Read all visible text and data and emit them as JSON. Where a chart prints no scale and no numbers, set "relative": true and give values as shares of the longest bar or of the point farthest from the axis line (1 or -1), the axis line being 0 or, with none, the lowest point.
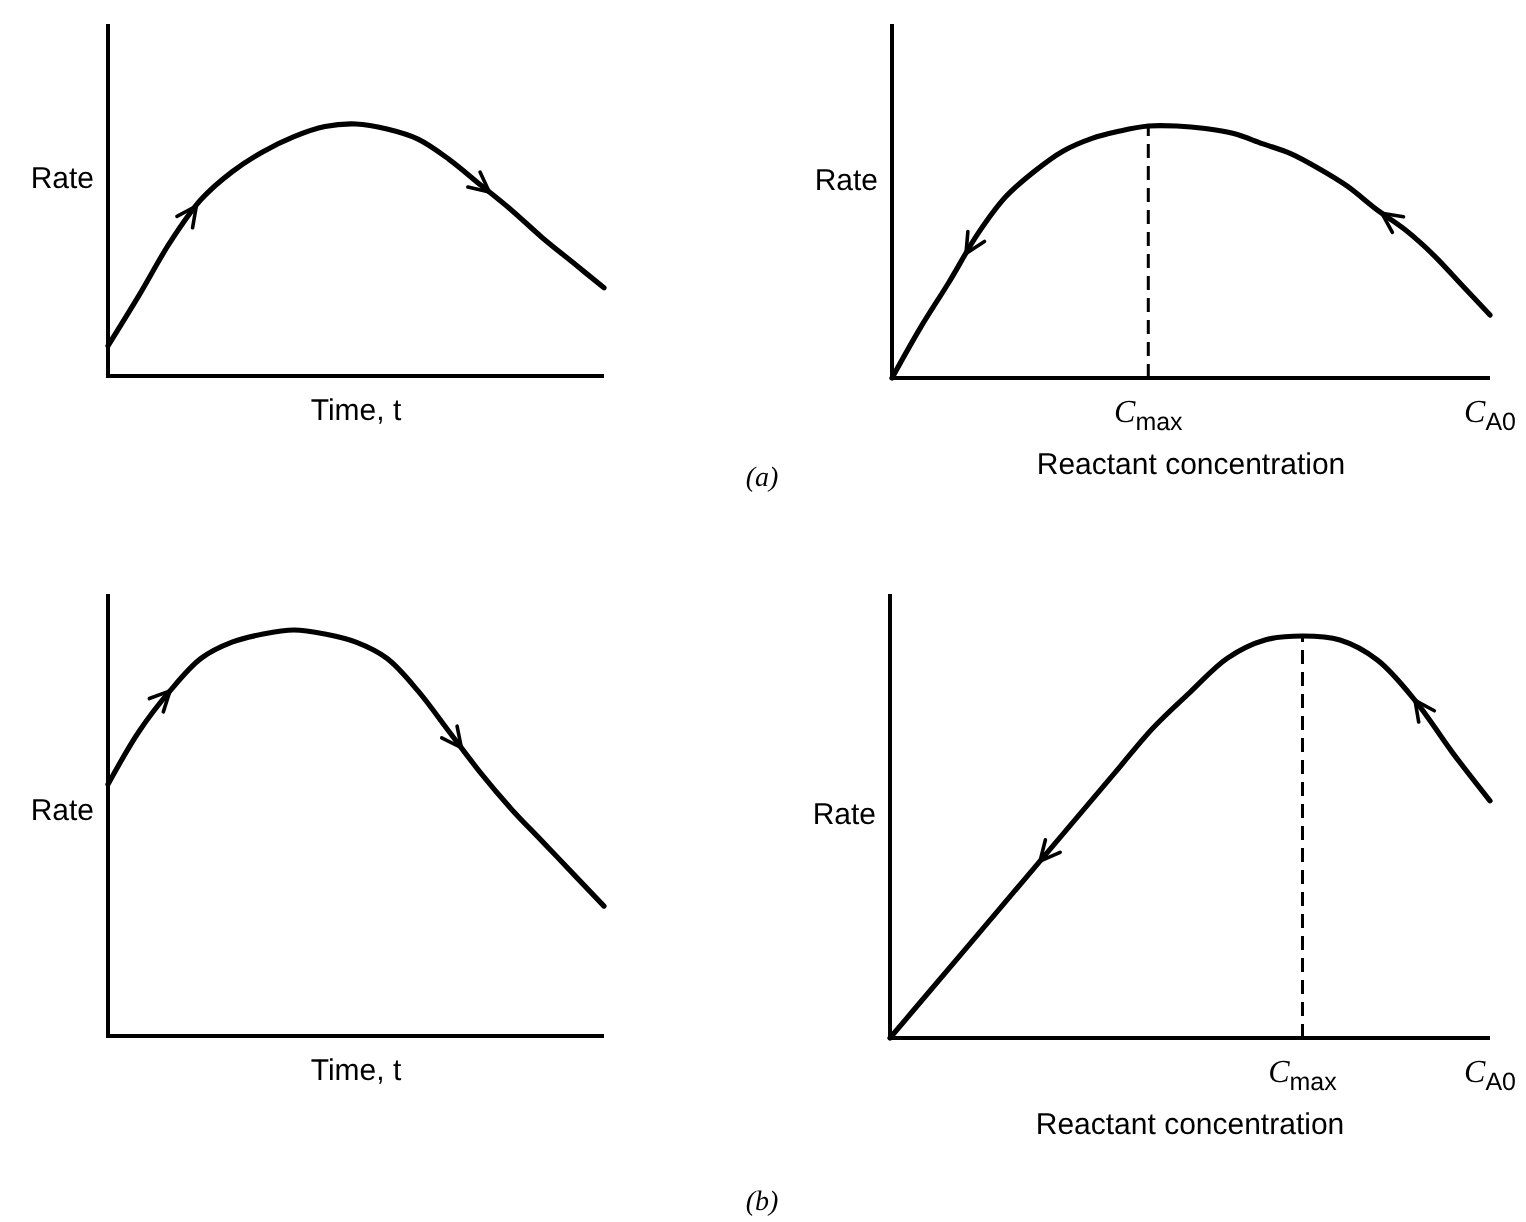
{
  "chart_data": [
    {
      "type": "line",
      "relative": true,
      "ylabel": "Rate",
      "xlabel": "Time, t",
      "tick_labels": false,
      "color": "#000000",
      "annotations": [
        "(a)"
      ],
      "categories": [
        null,
        null,
        null,
        null,
        null,
        null,
        null,
        null,
        null,
        null,
        null,
        null,
        null,
        null,
        null,
        null,
        null
      ],
      "values": [
        0.12,
        0.32,
        0.53,
        0.7,
        0.81,
        0.89,
        0.95,
        0.99,
        1.0,
        0.98,
        0.94,
        0.86,
        0.76,
        0.66,
        0.55,
        0.45,
        0.35
      ]
    },
    {
      "type": "line",
      "relative": true,
      "ylabel": "Rate",
      "xlabel": "Reactant concentration",
      "tick_labels": "x",
      "color": "#000000",
      "categories": [
        null,
        null,
        null,
        null,
        null,
        null,
        null,
        null,
        null,
        "C$_{max}$",
        null,
        null,
        null,
        null,
        null,
        null,
        null,
        null,
        null,
        null,
        null,
        "C$_{A0}$"
      ],
      "values": [
        0,
        0.2,
        0.38,
        0.57,
        0.72,
        0.82,
        0.9,
        0.95,
        0.98,
        1.0,
        1.0,
        0.99,
        0.97,
        0.93,
        0.89,
        0.83,
        0.76,
        0.67,
        0.59,
        0.49,
        0.37,
        0.25
      ],
      "ref_lines": [
        {
          "axis": "x",
          "value": "C$_{max}$",
          "line_style": "dashed",
          "color": "#000000"
        }
      ]
    },
    {
      "type": "line",
      "relative": true,
      "ylabel": "Rate",
      "xlabel": "Time, t",
      "tick_labels": false,
      "color": "#000000",
      "annotations": [
        "(b)"
      ],
      "categories": [
        null,
        null,
        null,
        null,
        null,
        null,
        null,
        null,
        null,
        null,
        null,
        null,
        null,
        null,
        null,
        null,
        null
      ],
      "values": [
        0.62,
        0.75,
        0.85,
        0.93,
        0.97,
        0.99,
        1.0,
        0.99,
        0.97,
        0.93,
        0.85,
        0.75,
        0.65,
        0.56,
        0.48,
        0.4,
        0.32
      ]
    },
    {
      "type": "line",
      "relative": true,
      "ylabel": "Rate",
      "xlabel": "Reactant concentration",
      "tick_labels": "x",
      "color": "#000000",
      "categories": [
        null,
        null,
        null,
        null,
        null,
        null,
        null,
        null,
        null,
        null,
        null,
        "C$_{max}$",
        null,
        null,
        null,
        null,
        "C$_{A0}$"
      ],
      "values": [
        0,
        0.11,
        0.22,
        0.33,
        0.44,
        0.55,
        0.66,
        0.77,
        0.86,
        0.945,
        0.99,
        1.0,
        0.99,
        0.94,
        0.84,
        0.71,
        0.59
      ],
      "ref_lines": [
        {
          "axis": "x",
          "value": "C$_{max}$",
          "line_style": "dashed",
          "color": "#000000"
        }
      ]
    }
  ]
}
